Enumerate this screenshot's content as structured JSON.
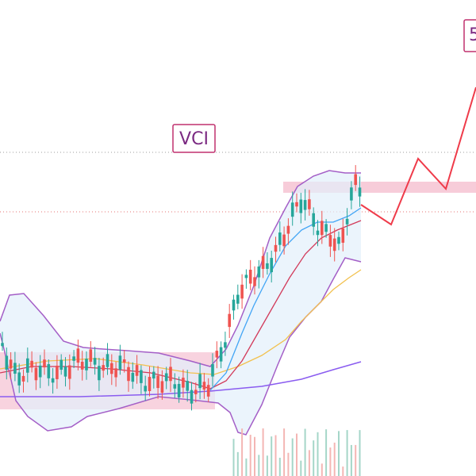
{
  "annotations": [
    {
      "label": "VCI"
    },
    {
      "label": "5"
    }
  ]
}
